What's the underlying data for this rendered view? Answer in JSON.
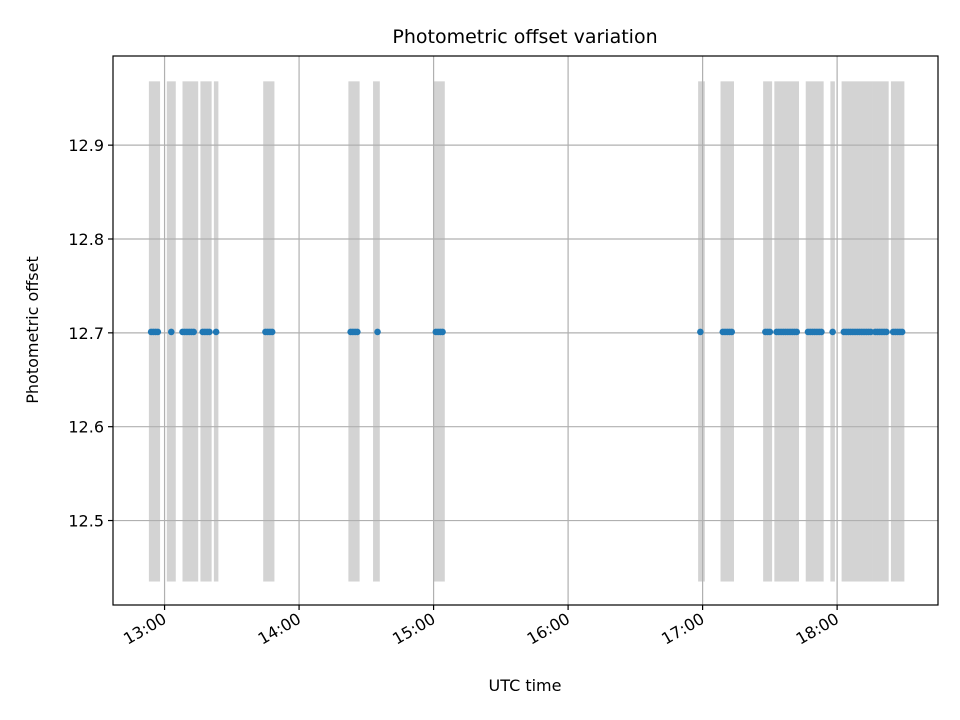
{
  "chart_data": {
    "type": "scatter",
    "title": "Photometric offset variation",
    "xlabel": "UTC time",
    "ylabel": "Photometric offset",
    "x_axis_kind": "time",
    "xlim": [
      "12:37",
      "18:45"
    ],
    "ylim": [
      12.41,
      12.995
    ],
    "x_ticks": [
      "13:00",
      "14:00",
      "15:00",
      "16:00",
      "17:00",
      "18:00"
    ],
    "y_ticks": [
      12.5,
      12.6,
      12.7,
      12.8,
      12.9
    ],
    "grid": true,
    "point_color": "#1f77b4",
    "band_color": "#d3d3d3",
    "uncertainty_bands": {
      "y_low": 12.435,
      "y_high": 12.968,
      "time_ranges": [
        [
          "12:53",
          "12:58"
        ],
        [
          "13:01",
          "13:05"
        ],
        [
          "13:08",
          "13:15"
        ],
        [
          "13:16",
          "13:21"
        ],
        [
          "13:22",
          "13:24"
        ],
        [
          "13:44",
          "13:49"
        ],
        [
          "14:22",
          "14:27"
        ],
        [
          "14:33",
          "14:36"
        ],
        [
          "15:00",
          "15:05"
        ],
        [
          "16:58",
          "17:01"
        ],
        [
          "17:08",
          "17:14"
        ],
        [
          "17:27",
          "17:31"
        ],
        [
          "17:32",
          "17:43"
        ],
        [
          "17:46",
          "17:54"
        ],
        [
          "17:57",
          "17:59"
        ],
        [
          "18:02",
          "18:16"
        ],
        [
          "18:16",
          "18:23"
        ],
        [
          "18:24",
          "18:30"
        ]
      ]
    },
    "series": [
      {
        "y": 12.701,
        "x": [
          "12:54",
          "12:55",
          "12:56",
          "12:57",
          "13:03",
          "13:08",
          "13:09",
          "13:10",
          "13:11",
          "13:12",
          "13:13",
          "13:17",
          "13:18",
          "13:19",
          "13:20",
          "13:23",
          "13:45",
          "13:46",
          "13:47",
          "13:48",
          "14:23",
          "14:24",
          "14:25",
          "14:26",
          "14:35",
          "15:01",
          "15:02",
          "15:03",
          "15:04",
          "16:59",
          "17:09",
          "17:10",
          "17:11",
          "17:12",
          "17:13",
          "17:28",
          "17:29",
          "17:30",
          "17:33",
          "17:34",
          "17:35",
          "17:36",
          "17:37",
          "17:38",
          "17:39",
          "17:40",
          "17:41",
          "17:42",
          "17:47",
          "17:48",
          "17:49",
          "17:50",
          "17:51",
          "17:52",
          "17:53",
          "17:58",
          "18:03",
          "18:04",
          "18:05",
          "18:06",
          "18:07",
          "18:08",
          "18:09",
          "18:10",
          "18:11",
          "18:12",
          "18:13",
          "18:14",
          "18:15",
          "18:17",
          "18:18",
          "18:19",
          "18:20",
          "18:21",
          "18:22",
          "18:25",
          "18:26",
          "18:27",
          "18:28",
          "18:29"
        ]
      }
    ]
  }
}
